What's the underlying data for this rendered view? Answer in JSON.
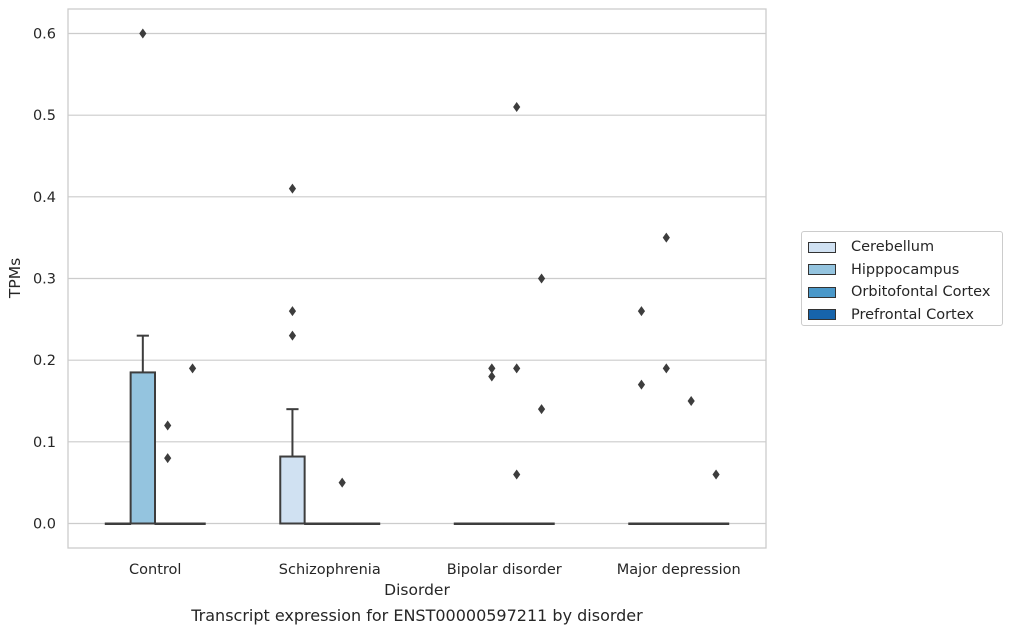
{
  "caption": "Transcript expression for ENST00000597211 by disorder",
  "chart_data": {
    "type": "box",
    "xlabel": "Disorder",
    "ylabel": "TPMs",
    "ylim": [
      -0.03,
      0.63
    ],
    "yticks": [
      "0.0",
      "0.1",
      "0.2",
      "0.3",
      "0.4",
      "0.5",
      "0.6"
    ],
    "categories": [
      "Control",
      "Schizophrenia",
      "Bipolar disorder",
      "Major depression"
    ],
    "grid": true,
    "legend_position": "right",
    "series": [
      {
        "name": "Cerebellum",
        "color": "#d0e1f2",
        "boxes": [
          {
            "q1": 0,
            "median": 0,
            "q3": 0,
            "whisker_low": 0,
            "whisker_high": 0,
            "outliers": []
          },
          {
            "q1": 0,
            "median": 0,
            "q3": 0.082,
            "whisker_low": 0,
            "whisker_high": 0.14,
            "outliers": [
              0.23,
              0.26,
              0.41
            ]
          },
          {
            "q1": 0,
            "median": 0,
            "q3": 0,
            "whisker_low": 0,
            "whisker_high": 0,
            "outliers": []
          },
          {
            "q1": 0,
            "median": 0,
            "q3": 0,
            "whisker_low": 0,
            "whisker_high": 0,
            "outliers": [
              0.17,
              0.26
            ]
          }
        ]
      },
      {
        "name": "Hipppocampus",
        "color": "#94c4df",
        "boxes": [
          {
            "q1": 0,
            "median": 0,
            "q3": 0.185,
            "whisker_low": 0,
            "whisker_high": 0.23,
            "outliers": [
              0.6
            ]
          },
          {
            "q1": 0,
            "median": 0,
            "q3": 0,
            "whisker_low": 0,
            "whisker_high": 0,
            "outliers": []
          },
          {
            "q1": 0,
            "median": 0,
            "q3": 0,
            "whisker_low": 0,
            "whisker_high": 0,
            "outliers": [
              0.18,
              0.19
            ]
          },
          {
            "q1": 0,
            "median": 0,
            "q3": 0,
            "whisker_low": 0,
            "whisker_high": 0,
            "outliers": [
              0.19,
              0.35
            ]
          }
        ]
      },
      {
        "name": "Orbitofontal Cortex",
        "color": "#4a98c9",
        "boxes": [
          {
            "q1": 0,
            "median": 0,
            "q3": 0,
            "whisker_low": 0,
            "whisker_high": 0,
            "outliers": [
              0.08,
              0.12
            ]
          },
          {
            "q1": 0,
            "median": 0,
            "q3": 0,
            "whisker_low": 0,
            "whisker_high": 0,
            "outliers": [
              0.05
            ]
          },
          {
            "q1": 0,
            "median": 0,
            "q3": 0,
            "whisker_low": 0,
            "whisker_high": 0,
            "outliers": [
              0.06,
              0.19,
              0.51
            ]
          },
          {
            "q1": 0,
            "median": 0,
            "q3": 0,
            "whisker_low": 0,
            "whisker_high": 0,
            "outliers": [
              0.15
            ]
          }
        ]
      },
      {
        "name": "Prefrontal Cortex",
        "color": "#1764ab",
        "boxes": [
          {
            "q1": 0,
            "median": 0,
            "q3": 0,
            "whisker_low": 0,
            "whisker_high": 0,
            "outliers": [
              0.19
            ]
          },
          {
            "q1": 0,
            "median": 0,
            "q3": 0,
            "whisker_low": 0,
            "whisker_high": 0,
            "outliers": []
          },
          {
            "q1": 0,
            "median": 0,
            "q3": 0,
            "whisker_low": 0,
            "whisker_high": 0,
            "outliers": [
              0.14,
              0.3
            ]
          },
          {
            "q1": 0,
            "median": 0,
            "q3": 0,
            "whisker_low": 0,
            "whisker_high": 0,
            "outliers": [
              0.06
            ]
          }
        ]
      }
    ]
  }
}
